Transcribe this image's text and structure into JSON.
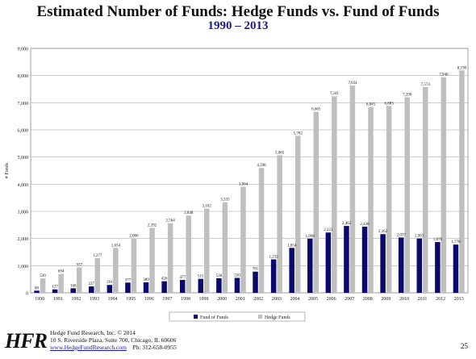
{
  "chart_data": {
    "type": "bar",
    "title": "Estimated Number of Funds: Hedge Funds vs. Fund of Funds",
    "subtitle": "1990 – 2013",
    "ylabel": "# Funds",
    "xlabel": "",
    "ylim": [
      0,
      9000
    ],
    "yticks": [
      "0",
      "1,000",
      "2,000",
      "3,000",
      "4,000",
      "5,000",
      "6,000",
      "7,000",
      "8,000",
      "9,000"
    ],
    "grid": true,
    "legend_position": "bottom",
    "categories": [
      "1990",
      "1991",
      "1992",
      "1993",
      "1994",
      "1995",
      "1996",
      "1997",
      "1998",
      "1999",
      "2000",
      "2001",
      "2002",
      "2003",
      "2004",
      "2005",
      "2006",
      "2007",
      "2008",
      "2009",
      "2010",
      "2011",
      "2012",
      "2013"
    ],
    "series": [
      {
        "name": "Fund of Funds",
        "color": "#0a0a6e",
        "values": [
          80,
          127,
          168,
          237,
          291,
          377,
          389,
          426,
          477,
          515,
          538,
          550,
          781,
          1232,
          1654,
          1996,
          2221,
          2462,
          2438,
          2162,
          2037,
          2001,
          1870,
          1778
        ],
        "labels": [
          "80",
          "127",
          "168",
          "237",
          "291",
          "377",
          "389",
          "426",
          "477",
          "515",
          "538",
          "550",
          "781",
          "1,232",
          "1,654",
          "1,996",
          "2,221",
          "2,462",
          "2,438",
          "2,162",
          "2,037",
          "2,001",
          "1,870",
          "1,778"
        ]
      },
      {
        "name": "Hedge Funds",
        "color": "#bfbfbf",
        "values": [
          530,
          694,
          937,
          1277,
          1654,
          2006,
          2392,
          2564,
          2848,
          3102,
          3335,
          3904,
          4598,
          5065,
          5782,
          6665,
          7241,
          7634,
          6845,
          6883,
          7200,
          7574,
          7940,
          8190
        ],
        "labels": [
          "530",
          "694",
          "937",
          "1,277",
          "1,654",
          "2,006",
          "2,392",
          "2,564",
          "2,848",
          "3,102",
          "3,335",
          "3,904",
          "4,598",
          "5,065",
          "5,782",
          "6,665",
          "7,241",
          "7,634",
          "6,845",
          "6,883",
          "7,200",
          "7,574",
          "7,940",
          "8,190"
        ]
      }
    ]
  },
  "footer": {
    "logo": "HFR",
    "company": "Hedge Fund Research, Inc. © 2014",
    "address": "10 S. Riverside Plaza, Suite 700, Chicago, IL 60606",
    "website": "www.HedgeFundResearch.com",
    "phone": "Ph: 312-658-0955",
    "page_number": "25"
  }
}
